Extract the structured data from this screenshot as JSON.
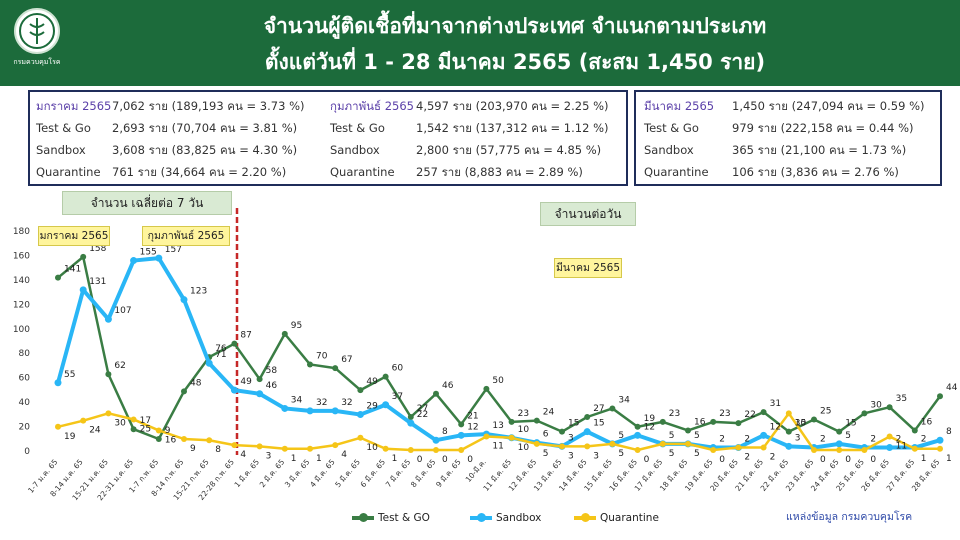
{
  "header": {
    "title_line1": "จำนวนผู้ติดเชื้อที่มาจากต่างประเทศ  จำแนกตามประเภท",
    "title_line2": "ตั้งแต่วันที่   1 - 28   มีนาคม   2565  (สะสม 1,450 ราย)",
    "logo_text": "กรมควบคุมโรค"
  },
  "summary_left": {
    "jan": [
      {
        "label": "มกราคม 2565",
        "value": "7,062 ราย (189,193 คน = 3.73 %)"
      },
      {
        "label": "Test & Go",
        "value": "2,693 ราย (70,704 คน = 3.81 %)"
      },
      {
        "label": "Sandbox",
        "value": "3,608 ราย (83,825 คน = 4.30 %)"
      },
      {
        "label": "Quarantine",
        "value": "761 ราย (34,664 คน = 2.20 %)"
      }
    ],
    "feb": [
      {
        "label": "กุมภาพันธ์ 2565",
        "value": "4,597 ราย (203,970 คน = 2.25 %)"
      },
      {
        "label": "Test & Go",
        "value": "1,542 ราย (137,312 คน  = 1.12 %)"
      },
      {
        "label": "Sandbox",
        "value": "2,800 ราย (57,775 คน = 4.85 %)"
      },
      {
        "label": "Quarantine",
        "value": "257 ราย (8,883 คน    = 2.89 %)"
      }
    ]
  },
  "summary_right": [
    {
      "label": "มีนาคม 2565",
      "value": "1,450 ราย (247,094 คน = 0.59 %)"
    },
    {
      "label": "Test & Go",
      "value": "979 ราย (222,158 คน = 0.44 %)"
    },
    {
      "label": "Sandbox",
      "value": "365 ราย (21,100 คน = 1.73 %)"
    },
    {
      "label": "Quarantine",
      "value": "106 ราย (3,836 คน  = 2.76 %)"
    }
  ],
  "labels": {
    "avg_7day": "จำนวน  เฉลี่ยต่อ 7 วัน",
    "daily": "จำนวนต่อวัน",
    "jan": "มกราคม 2565",
    "feb": "กุมภาพันธ์ 2565",
    "mar": "มีนาคม 2565"
  },
  "source": "แหล่งข้อมูล กรมควบคุมโรค",
  "colors": {
    "header_bg": "#1c6b3b",
    "test_go": "#3a7d44",
    "sandbox": "#29b6f6",
    "quarantine": "#f5c518",
    "divider": "#c62828"
  },
  "chart_data": {
    "type": "line",
    "ylim": [
      0,
      180
    ],
    "yticks": [
      0,
      20,
      40,
      60,
      80,
      100,
      120,
      140,
      160,
      180
    ],
    "grid": false,
    "legend_position": "bottom",
    "x": [
      "1-7 ม.ค. 65",
      "8-14 ม.ค. 65",
      "15-21 ม.ค. 65",
      "22-31 ม.ค. 65",
      "1-7 ก.พ. 65",
      "8-14 ก.พ. 65",
      "15-21 ก.พ. 65",
      "22-28 ก.พ. 65",
      "1 มี.ค. 65",
      "2 มี.ค. 65",
      "3 มี.ค. 65",
      "4 มี.ค. 65",
      "5 มี.ค. 65",
      "6 มี.ค. 65",
      "7 มี.ค. 65",
      "8 มี.ค. 65",
      "9 มี.ค. 65",
      "10-มี.ค.",
      "11 มี.ค. 65",
      "12 มี.ค. 65",
      "13 มี.ค. 65",
      "14 มี.ค. 65",
      "15 มี.ค. 65",
      "16 มี.ค. 65",
      "17 มี.ค. 65",
      "18 มี.ค. 65",
      "19 มี.ค. 65",
      "20 มี.ค. 65",
      "21 มี.ค. 65",
      "22 มี.ค. 65",
      "23 มี.ค. 65",
      "24 มี.ค. 65",
      "25 มี.ค. 65",
      "26 มี.ค. 65",
      "27 มี.ค. 65",
      "28 มี.ค. 65"
    ],
    "divider_after_index": 7,
    "series": [
      {
        "name": "Test & GO",
        "color": "#3a7d44",
        "values": [
          141,
          158,
          62,
          17,
          9,
          48,
          76,
          87,
          58,
          95,
          70,
          67,
          49,
          60,
          27,
          46,
          21,
          50,
          23,
          24,
          15,
          27,
          34,
          19,
          23,
          16,
          23,
          22,
          31,
          15,
          25,
          15,
          30,
          35,
          16,
          44
        ],
        "labels": [
          "141",
          "158",
          "62",
          "17",
          "9",
          "48",
          "76",
          "87",
          "58",
          "95",
          "70",
          "67",
          "49",
          "60",
          "27",
          "46",
          "21",
          "50",
          "23",
          "24",
          "15",
          "27",
          "34",
          "19",
          "23",
          "16",
          "23",
          "22",
          "31",
          "15",
          "25",
          "15",
          "30",
          "35",
          "16",
          "44"
        ]
      },
      {
        "name": "Sandbox",
        "color": "#29b6f6",
        "values": [
          55,
          131,
          107,
          155,
          157,
          123,
          71,
          49,
          46,
          34,
          32,
          32,
          29,
          37,
          22,
          8,
          12,
          13,
          10,
          6,
          3,
          15,
          5,
          12,
          5,
          5,
          2,
          2,
          12,
          3,
          2,
          5,
          2,
          2,
          2,
          8
        ],
        "labels": [
          "55",
          "131",
          "107",
          "155",
          "157",
          "123",
          "71",
          "49",
          "46",
          "34",
          "32",
          "32",
          "29",
          "37",
          "22",
          "8",
          "12",
          "13",
          "10",
          "6",
          "3",
          "15",
          "5",
          "12",
          "5",
          "5",
          "2",
          "2",
          "12",
          "3",
          "2",
          "5",
          "2",
          "2",
          "2",
          "8"
        ]
      },
      {
        "name": "Quarantine",
        "color": "#f5c518",
        "values": [
          19,
          24,
          30,
          25,
          16,
          9,
          8,
          4,
          3,
          1,
          1,
          4,
          10,
          1,
          0,
          0,
          0,
          11,
          10,
          5,
          3,
          3,
          5,
          0,
          5,
          5,
          0,
          2,
          2,
          30,
          0,
          0,
          0,
          11,
          1,
          1
        ],
        "labels": [
          "19",
          "24",
          "30",
          "25",
          "16",
          "9",
          "8",
          "4",
          "3",
          "1",
          "1",
          "4",
          "10",
          "1",
          "0",
          "0",
          "0",
          "11",
          "10",
          "5",
          "3",
          "3",
          "5",
          "0",
          "5",
          "5",
          "0",
          "2",
          "2",
          "30",
          "0",
          "0",
          "0",
          "11",
          "1",
          "1"
        ]
      }
    ]
  }
}
